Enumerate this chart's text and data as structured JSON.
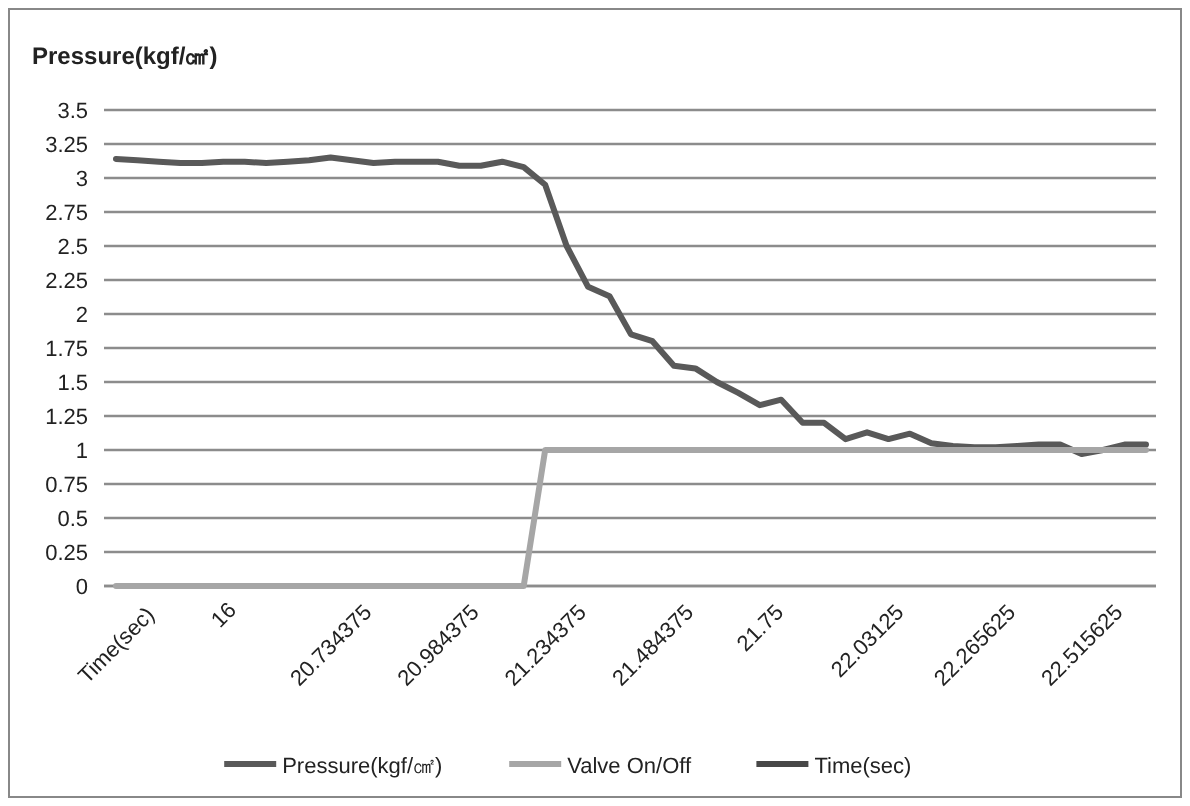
{
  "chart_data": {
    "type": "line",
    "ylabel": "Pressure(kgf/㎠)",
    "categories": [
      "Time(sec)",
      null,
      null,
      null,
      null,
      "16",
      null,
      null,
      null,
      null,
      "20.734375",
      null,
      null,
      null,
      null,
      "20.984375",
      null,
      null,
      null,
      null,
      "21.234375",
      null,
      null,
      null,
      null,
      "21.484375",
      null,
      null,
      null,
      null,
      "21.75",
      null,
      null,
      null,
      null,
      "22.03125",
      null,
      null,
      null,
      null,
      "22.265625",
      null,
      null,
      null,
      null,
      "22.515625",
      null,
      null,
      null
    ],
    "series": [
      {
        "name": "Pressure(kgf/㎠)",
        "color": "#595959",
        "values": [
          3.14,
          3.13,
          3.12,
          3.11,
          3.11,
          3.12,
          3.12,
          3.11,
          3.12,
          3.13,
          3.15,
          3.13,
          3.11,
          3.12,
          3.12,
          3.12,
          3.09,
          3.09,
          3.12,
          3.08,
          2.95,
          2.5,
          2.2,
          2.13,
          1.85,
          1.8,
          1.62,
          1.6,
          1.5,
          1.42,
          1.33,
          1.37,
          1.2,
          1.2,
          1.08,
          1.13,
          1.08,
          1.12,
          1.05,
          1.03,
          1.02,
          1.02,
          1.03,
          1.04,
          1.04,
          0.97,
          1.0,
          1.04,
          1.04
        ]
      },
      {
        "name": "Valve On/Off",
        "color": "#a6a6a6",
        "values": [
          0,
          0,
          0,
          0,
          0,
          0,
          0,
          0,
          0,
          0,
          0,
          0,
          0,
          0,
          0,
          0,
          0,
          0,
          0,
          0,
          1,
          1,
          1,
          1,
          1,
          1,
          1,
          1,
          1,
          1,
          1,
          1,
          1,
          1,
          1,
          1,
          1,
          1,
          1,
          1,
          1,
          1,
          1,
          1,
          1,
          1,
          1,
          1,
          1
        ]
      },
      {
        "name": "Time(sec)",
        "color": "#474747",
        "values": [
          null,
          null,
          null,
          null,
          null,
          null,
          null,
          null,
          null,
          null,
          null,
          null,
          null,
          null,
          null,
          null,
          null,
          null,
          null,
          null,
          null,
          null,
          null,
          null,
          null,
          null,
          null,
          null,
          null,
          null,
          null,
          null,
          null,
          null,
          null,
          null,
          null,
          null,
          null,
          null,
          null,
          null,
          null,
          null,
          null,
          null,
          null,
          null,
          null
        ]
      }
    ],
    "ylim": [
      0,
      3.5
    ],
    "yticks": [
      0,
      {
        "value": 0.25,
        "label": "0.25"
      },
      {
        "value": 0.5,
        "label": "0.5"
      },
      {
        "value": 0.75,
        "label": "0.75"
      },
      1,
      {
        "value": 1.25,
        "label": "1.25"
      },
      {
        "value": 1.5,
        "label": "1.5"
      },
      {
        "value": 1.75,
        "label": "1.75"
      },
      2,
      {
        "value": 2.25,
        "label": "2.25"
      },
      {
        "value": 2.5,
        "label": "2.5"
      },
      {
        "value": 2.75,
        "label": "2.75"
      },
      3,
      {
        "value": 3.25,
        "label": "3.25"
      },
      {
        "value": 3.5,
        "label": "3.5"
      }
    ],
    "grid": "y",
    "legend": "bottom",
    "marker": "none",
    "line_style": "solid"
  }
}
